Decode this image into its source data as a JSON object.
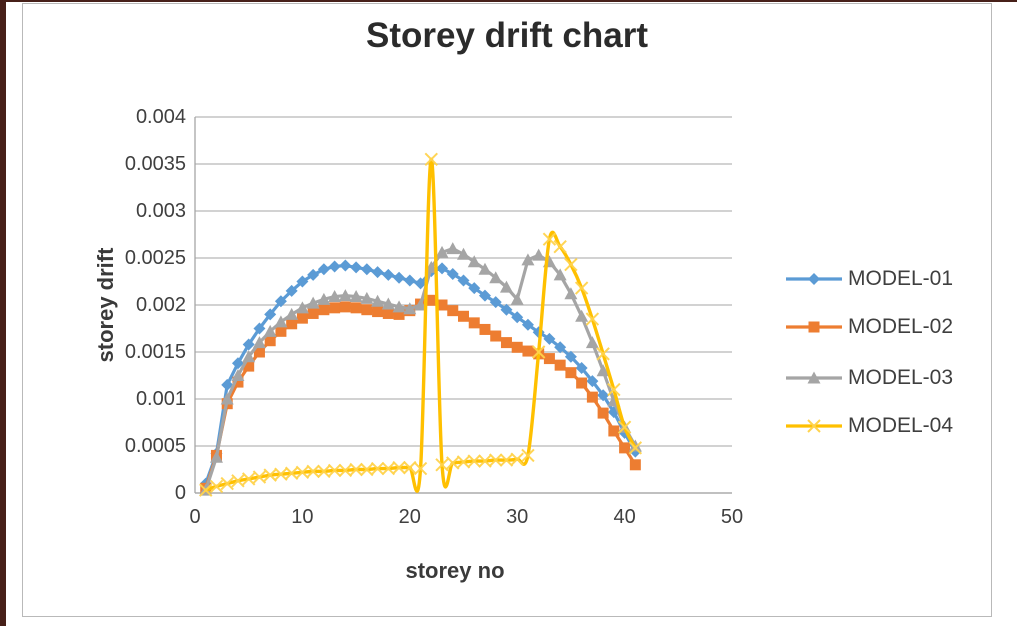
{
  "title": "Storey drift chart",
  "chart_data": {
    "type": "line",
    "title": "Storey drift chart",
    "xlabel": "storey no",
    "ylabel": "storey drift",
    "xlim": [
      0,
      50
    ],
    "ylim": [
      0,
      0.004
    ],
    "grid": true,
    "legend_position": "right",
    "x_tick_labels": [
      "0",
      "10",
      "20",
      "30",
      "40",
      "50"
    ],
    "x_tick_values": [
      0,
      10,
      20,
      30,
      40,
      50
    ],
    "y_tick_labels": [
      "0",
      "0.0005",
      "0.001",
      "0.0015",
      "0.002",
      "0.0025",
      "0.003",
      "0.0035",
      "0.004"
    ],
    "y_tick_values": [
      0,
      0.0005,
      0.001,
      0.0015,
      0.002,
      0.0025,
      0.003,
      0.0035,
      0.004
    ],
    "x": [
      1,
      2,
      3,
      4,
      5,
      6,
      7,
      8,
      9,
      10,
      11,
      12,
      13,
      14,
      15,
      16,
      17,
      18,
      19,
      20,
      21,
      22,
      23,
      24,
      25,
      26,
      27,
      28,
      29,
      30,
      31,
      32,
      33,
      34,
      35,
      36,
      37,
      38,
      39,
      40,
      41
    ],
    "series": [
      {
        "name": "MODEL-01",
        "color": "#5B9BD5",
        "marker": "diamond",
        "smooth": false,
        "values": [
          0.0001,
          0.00042,
          0.00115,
          0.00138,
          0.00158,
          0.00175,
          0.0019,
          0.00204,
          0.00215,
          0.00225,
          0.00232,
          0.00238,
          0.00241,
          0.00242,
          0.0024,
          0.00238,
          0.00235,
          0.00232,
          0.00229,
          0.00226,
          0.00223,
          0.00236,
          0.00239,
          0.00233,
          0.00226,
          0.00218,
          0.0021,
          0.00203,
          0.00195,
          0.00187,
          0.00179,
          0.00171,
          0.00164,
          0.00155,
          0.00145,
          0.00133,
          0.00119,
          0.00104,
          0.00086,
          0.00064,
          0.00044
        ]
      },
      {
        "name": "MODEL-02",
        "color": "#ED7D31",
        "marker": "square",
        "smooth": false,
        "values": [
          5e-05,
          0.0004,
          0.00095,
          0.00118,
          0.00135,
          0.0015,
          0.00162,
          0.00172,
          0.0018,
          0.00186,
          0.00191,
          0.00195,
          0.00197,
          0.00198,
          0.00197,
          0.00195,
          0.00193,
          0.00191,
          0.0019,
          0.00194,
          0.00201,
          0.00205,
          0.002,
          0.00194,
          0.00188,
          0.00181,
          0.00174,
          0.00167,
          0.0016,
          0.00155,
          0.00151,
          0.00148,
          0.00143,
          0.00136,
          0.00128,
          0.00117,
          0.00102,
          0.00085,
          0.00066,
          0.00048,
          0.0003
        ]
      },
      {
        "name": "MODEL-03",
        "color": "#A5A5A5",
        "marker": "triangle",
        "smooth": false,
        "values": [
          3e-05,
          0.00038,
          0.001,
          0.00125,
          0.00145,
          0.0016,
          0.00172,
          0.00182,
          0.0019,
          0.00197,
          0.00202,
          0.00206,
          0.00209,
          0.0021,
          0.00209,
          0.00207,
          0.00204,
          0.00201,
          0.00198,
          0.00196,
          0.002,
          0.0024,
          0.00256,
          0.0026,
          0.00254,
          0.00246,
          0.00238,
          0.00229,
          0.00219,
          0.00206,
          0.00248,
          0.00253,
          0.00246,
          0.00232,
          0.00212,
          0.00188,
          0.0016,
          0.0013,
          0.00098,
          0.0007,
          0.0005
        ]
      },
      {
        "name": "MODEL-04",
        "color": "#FFC000",
        "marker": "x",
        "marker_color": "#FFD34D",
        "smooth": true,
        "values": [
          3e-05,
          7e-05,
          0.0001,
          0.00013,
          0.00015,
          0.00017,
          0.00019,
          0.0002,
          0.00021,
          0.00022,
          0.00023,
          0.00023,
          0.00024,
          0.00024,
          0.00025,
          0.00025,
          0.00026,
          0.00026,
          0.00027,
          0.00027,
          0.00026,
          0.00355,
          0.0003,
          0.00032,
          0.00033,
          0.00034,
          0.00034,
          0.00035,
          0.00035,
          0.00036,
          0.0004,
          0.0015,
          0.0027,
          0.00262,
          0.00243,
          0.00218,
          0.00185,
          0.00148,
          0.0011,
          0.0007,
          0.00048
        ]
      }
    ],
    "colors": {
      "gridline": "#b7b7b7",
      "axis_line": "#a6a6a6",
      "title_text": "#2b2b2b",
      "tick_text": "#3f3f3f"
    }
  }
}
